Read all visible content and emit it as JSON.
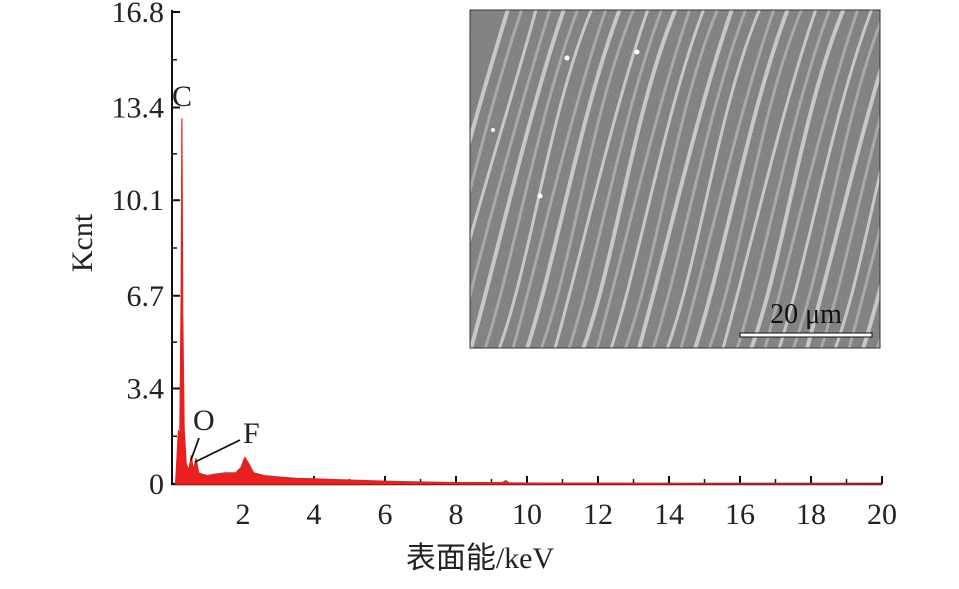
{
  "chart_data": {
    "type": "line",
    "xlabel": "表面能/keV",
    "ylabel": "Kcnt",
    "xlim": [
      0,
      20
    ],
    "ylim": [
      0,
      16.8
    ],
    "x_ticks": [
      2,
      4,
      6,
      8,
      10,
      12,
      14,
      16,
      18,
      20
    ],
    "y_ticks": [
      0,
      3.4,
      6.7,
      10.1,
      13.4,
      16.8
    ],
    "y_tick_labels": [
      "0",
      "3.4",
      "6.7",
      "10.1",
      "13.4",
      "16.8"
    ],
    "series_color": "#e8211f",
    "spectrum": [
      [
        0.1,
        0.0
      ],
      [
        0.18,
        1.9
      ],
      [
        0.22,
        1.6
      ],
      [
        0.26,
        7.0
      ],
      [
        0.28,
        13.0
      ],
      [
        0.3,
        6.2
      ],
      [
        0.34,
        2.0
      ],
      [
        0.4,
        0.7
      ],
      [
        0.48,
        0.5
      ],
      [
        0.54,
        1.0
      ],
      [
        0.6,
        0.5
      ],
      [
        0.68,
        0.9
      ],
      [
        0.75,
        0.4
      ],
      [
        0.85,
        0.35
      ],
      [
        1.0,
        0.3
      ],
      [
        1.2,
        0.35
      ],
      [
        1.5,
        0.4
      ],
      [
        1.8,
        0.4
      ],
      [
        1.95,
        0.6
      ],
      [
        2.05,
        0.95
      ],
      [
        2.15,
        0.75
      ],
      [
        2.3,
        0.4
      ],
      [
        2.6,
        0.3
      ],
      [
        3.0,
        0.25
      ],
      [
        3.5,
        0.2
      ],
      [
        4.0,
        0.18
      ],
      [
        5.0,
        0.14
      ],
      [
        6.0,
        0.1
      ],
      [
        7.0,
        0.07
      ],
      [
        8.0,
        0.05
      ],
      [
        9.3,
        0.05
      ],
      [
        9.4,
        0.12
      ],
      [
        9.5,
        0.04
      ],
      [
        10.5,
        0.03
      ],
      [
        12.0,
        0.02
      ],
      [
        14.0,
        0.015
      ],
      [
        16.0,
        0.01
      ],
      [
        18.0,
        0.01
      ],
      [
        20.0,
        0.0
      ]
    ],
    "peak_labels": [
      {
        "label": "C",
        "energy": 0.28
      },
      {
        "label": "O",
        "energy": 0.52
      },
      {
        "label": "F",
        "energy": 0.68
      }
    ]
  },
  "inset": {
    "scale_bar_label": "20 μm"
  }
}
